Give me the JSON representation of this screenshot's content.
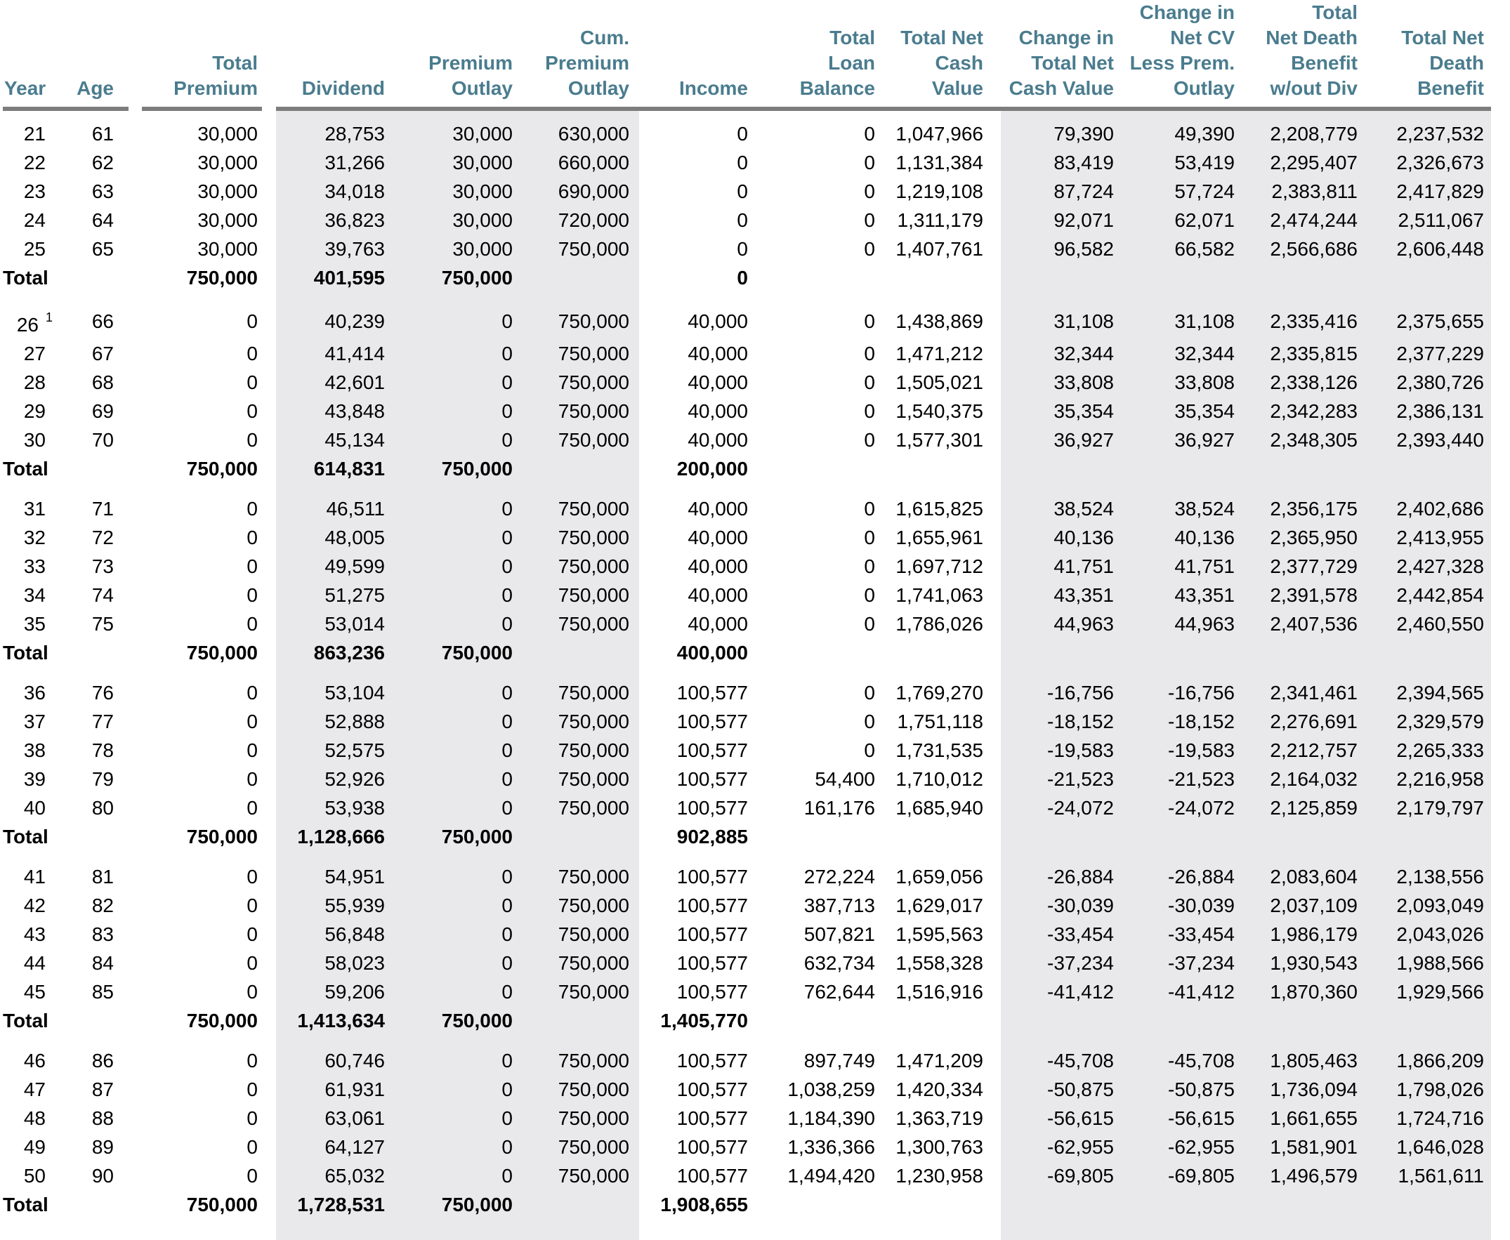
{
  "colors": {
    "header_text": "#4A7C8E",
    "rule": "#7D7D7D",
    "shade": "#E9E9EB",
    "data_text": "#000000",
    "background": "#FFFFFF"
  },
  "total_label": "Total",
  "footnote_marker": "1",
  "columns": [
    {
      "key": "year",
      "label": "Year",
      "align": "left"
    },
    {
      "key": "age",
      "label": "Age"
    },
    {
      "key": "total_premium",
      "label": "Total\nPremium"
    },
    {
      "key": "dividend",
      "label": "Dividend"
    },
    {
      "key": "premium_outlay",
      "label": "Premium\nOutlay"
    },
    {
      "key": "cum_premium_outlay",
      "label": "Cum.\nPremium\nOutlay"
    },
    {
      "key": "income",
      "label": "Income"
    },
    {
      "key": "total_loan_balance",
      "label": "Total\nLoan\nBalance"
    },
    {
      "key": "total_net_cash_value",
      "label": "Total Net\nCash\nValue"
    },
    {
      "key": "change_in_total_net_cash_value",
      "label": "Change in\nTotal Net\nCash Value"
    },
    {
      "key": "change_in_net_cv_less_prem_outlay",
      "label": "Change in\nNet CV\nLess Prem.\nOutlay"
    },
    {
      "key": "total_net_death_benefit_wout_div",
      "label": "Total\nNet Death\nBenefit\nw/out Div"
    },
    {
      "key": "total_net_death_benefit",
      "label": "Total Net\nDeath\nBenefit"
    }
  ],
  "blocks": [
    {
      "rows": [
        [
          "21",
          "61",
          "30,000",
          "28,753",
          "30,000",
          "630,000",
          "0",
          "0",
          "1,047,966",
          "79,390",
          "49,390",
          "2,208,779",
          "2,237,532"
        ],
        [
          "22",
          "62",
          "30,000",
          "31,266",
          "30,000",
          "660,000",
          "0",
          "0",
          "1,131,384",
          "83,419",
          "53,419",
          "2,295,407",
          "2,326,673"
        ],
        [
          "23",
          "63",
          "30,000",
          "34,018",
          "30,000",
          "690,000",
          "0",
          "0",
          "1,219,108",
          "87,724",
          "57,724",
          "2,383,811",
          "2,417,829"
        ],
        [
          "24",
          "64",
          "30,000",
          "36,823",
          "30,000",
          "720,000",
          "0",
          "0",
          "1,311,179",
          "92,071",
          "62,071",
          "2,474,244",
          "2,511,067"
        ],
        [
          "25",
          "65",
          "30,000",
          "39,763",
          "30,000",
          "750,000",
          "0",
          "0",
          "1,407,761",
          "96,582",
          "66,582",
          "2,566,686",
          "2,606,448"
        ]
      ],
      "total": [
        "750,000",
        "401,595",
        "750,000",
        "",
        "0",
        "",
        "",
        "",
        "",
        "",
        ""
      ]
    },
    {
      "rows": [
        [
          "26^1",
          "66",
          "0",
          "40,239",
          "0",
          "750,000",
          "40,000",
          "0",
          "1,438,869",
          "31,108",
          "31,108",
          "2,335,416",
          "2,375,655"
        ],
        [
          "27",
          "67",
          "0",
          "41,414",
          "0",
          "750,000",
          "40,000",
          "0",
          "1,471,212",
          "32,344",
          "32,344",
          "2,335,815",
          "2,377,229"
        ],
        [
          "28",
          "68",
          "0",
          "42,601",
          "0",
          "750,000",
          "40,000",
          "0",
          "1,505,021",
          "33,808",
          "33,808",
          "2,338,126",
          "2,380,726"
        ],
        [
          "29",
          "69",
          "0",
          "43,848",
          "0",
          "750,000",
          "40,000",
          "0",
          "1,540,375",
          "35,354",
          "35,354",
          "2,342,283",
          "2,386,131"
        ],
        [
          "30",
          "70",
          "0",
          "45,134",
          "0",
          "750,000",
          "40,000",
          "0",
          "1,577,301",
          "36,927",
          "36,927",
          "2,348,305",
          "2,393,440"
        ]
      ],
      "total": [
        "750,000",
        "614,831",
        "750,000",
        "",
        "200,000",
        "",
        "",
        "",
        "",
        "",
        ""
      ]
    },
    {
      "rows": [
        [
          "31",
          "71",
          "0",
          "46,511",
          "0",
          "750,000",
          "40,000",
          "0",
          "1,615,825",
          "38,524",
          "38,524",
          "2,356,175",
          "2,402,686"
        ],
        [
          "32",
          "72",
          "0",
          "48,005",
          "0",
          "750,000",
          "40,000",
          "0",
          "1,655,961",
          "40,136",
          "40,136",
          "2,365,950",
          "2,413,955"
        ],
        [
          "33",
          "73",
          "0",
          "49,599",
          "0",
          "750,000",
          "40,000",
          "0",
          "1,697,712",
          "41,751",
          "41,751",
          "2,377,729",
          "2,427,328"
        ],
        [
          "34",
          "74",
          "0",
          "51,275",
          "0",
          "750,000",
          "40,000",
          "0",
          "1,741,063",
          "43,351",
          "43,351",
          "2,391,578",
          "2,442,854"
        ],
        [
          "35",
          "75",
          "0",
          "53,014",
          "0",
          "750,000",
          "40,000",
          "0",
          "1,786,026",
          "44,963",
          "44,963",
          "2,407,536",
          "2,460,550"
        ]
      ],
      "total": [
        "750,000",
        "863,236",
        "750,000",
        "",
        "400,000",
        "",
        "",
        "",
        "",
        "",
        ""
      ]
    },
    {
      "rows": [
        [
          "36",
          "76",
          "0",
          "53,104",
          "0",
          "750,000",
          "100,577",
          "0",
          "1,769,270",
          "-16,756",
          "-16,756",
          "2,341,461",
          "2,394,565"
        ],
        [
          "37",
          "77",
          "0",
          "52,888",
          "0",
          "750,000",
          "100,577",
          "0",
          "1,751,118",
          "-18,152",
          "-18,152",
          "2,276,691",
          "2,329,579"
        ],
        [
          "38",
          "78",
          "0",
          "52,575",
          "0",
          "750,000",
          "100,577",
          "0",
          "1,731,535",
          "-19,583",
          "-19,583",
          "2,212,757",
          "2,265,333"
        ],
        [
          "39",
          "79",
          "0",
          "52,926",
          "0",
          "750,000",
          "100,577",
          "54,400",
          "1,710,012",
          "-21,523",
          "-21,523",
          "2,164,032",
          "2,216,958"
        ],
        [
          "40",
          "80",
          "0",
          "53,938",
          "0",
          "750,000",
          "100,577",
          "161,176",
          "1,685,940",
          "-24,072",
          "-24,072",
          "2,125,859",
          "2,179,797"
        ]
      ],
      "total": [
        "750,000",
        "1,128,666",
        "750,000",
        "",
        "902,885",
        "",
        "",
        "",
        "",
        "",
        ""
      ]
    },
    {
      "rows": [
        [
          "41",
          "81",
          "0",
          "54,951",
          "0",
          "750,000",
          "100,577",
          "272,224",
          "1,659,056",
          "-26,884",
          "-26,884",
          "2,083,604",
          "2,138,556"
        ],
        [
          "42",
          "82",
          "0",
          "55,939",
          "0",
          "750,000",
          "100,577",
          "387,713",
          "1,629,017",
          "-30,039",
          "-30,039",
          "2,037,109",
          "2,093,049"
        ],
        [
          "43",
          "83",
          "0",
          "56,848",
          "0",
          "750,000",
          "100,577",
          "507,821",
          "1,595,563",
          "-33,454",
          "-33,454",
          "1,986,179",
          "2,043,026"
        ],
        [
          "44",
          "84",
          "0",
          "58,023",
          "0",
          "750,000",
          "100,577",
          "632,734",
          "1,558,328",
          "-37,234",
          "-37,234",
          "1,930,543",
          "1,988,566"
        ],
        [
          "45",
          "85",
          "0",
          "59,206",
          "0",
          "750,000",
          "100,577",
          "762,644",
          "1,516,916",
          "-41,412",
          "-41,412",
          "1,870,360",
          "1,929,566"
        ]
      ],
      "total": [
        "750,000",
        "1,413,634",
        "750,000",
        "",
        "1,405,770",
        "",
        "",
        "",
        "",
        "",
        ""
      ]
    },
    {
      "rows": [
        [
          "46",
          "86",
          "0",
          "60,746",
          "0",
          "750,000",
          "100,577",
          "897,749",
          "1,471,209",
          "-45,708",
          "-45,708",
          "1,805,463",
          "1,866,209"
        ],
        [
          "47",
          "87",
          "0",
          "61,931",
          "0",
          "750,000",
          "100,577",
          "1,038,259",
          "1,420,334",
          "-50,875",
          "-50,875",
          "1,736,094",
          "1,798,026"
        ],
        [
          "48",
          "88",
          "0",
          "63,061",
          "0",
          "750,000",
          "100,577",
          "1,184,390",
          "1,363,719",
          "-56,615",
          "-56,615",
          "1,661,655",
          "1,724,716"
        ],
        [
          "49",
          "89",
          "0",
          "64,127",
          "0",
          "750,000",
          "100,577",
          "1,336,366",
          "1,300,763",
          "-62,955",
          "-62,955",
          "1,581,901",
          "1,646,028"
        ],
        [
          "50",
          "90",
          "0",
          "65,032",
          "0",
          "750,000",
          "100,577",
          "1,494,420",
          "1,230,958",
          "-69,805",
          "-69,805",
          "1,496,579",
          "1,561,611"
        ]
      ],
      "total": [
        "750,000",
        "1,728,531",
        "750,000",
        "",
        "1,908,655",
        "",
        "",
        "",
        "",
        "",
        ""
      ]
    }
  ]
}
